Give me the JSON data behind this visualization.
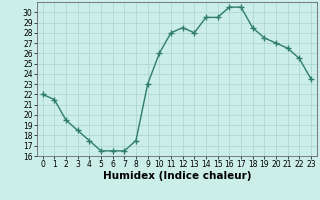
{
  "x": [
    0,
    1,
    2,
    3,
    4,
    5,
    6,
    7,
    8,
    9,
    10,
    11,
    12,
    13,
    14,
    15,
    16,
    17,
    18,
    19,
    20,
    21,
    22,
    23
  ],
  "y": [
    22,
    21.5,
    19.5,
    18.5,
    17.5,
    16.5,
    16.5,
    16.5,
    17.5,
    23,
    26,
    28,
    28.5,
    28,
    29.5,
    29.5,
    30.5,
    30.5,
    28.5,
    27.5,
    27,
    26.5,
    25.5,
    23.5
  ],
  "line_color": "#2e7d6e",
  "marker": "+",
  "marker_size": 4,
  "bg_color": "#cceee8",
  "grid_color": "#b0d8d0",
  "xlabel": "Humidex (Indice chaleur)",
  "xlim": [
    -0.5,
    23.5
  ],
  "ylim": [
    16,
    31
  ],
  "yticks": [
    16,
    17,
    18,
    19,
    20,
    21,
    22,
    23,
    24,
    25,
    26,
    27,
    28,
    29,
    30
  ],
  "xticks": [
    0,
    1,
    2,
    3,
    4,
    5,
    6,
    7,
    8,
    9,
    10,
    11,
    12,
    13,
    14,
    15,
    16,
    17,
    18,
    19,
    20,
    21,
    22,
    23
  ],
  "tick_fontsize": 5.5,
  "xlabel_fontsize": 7.5
}
